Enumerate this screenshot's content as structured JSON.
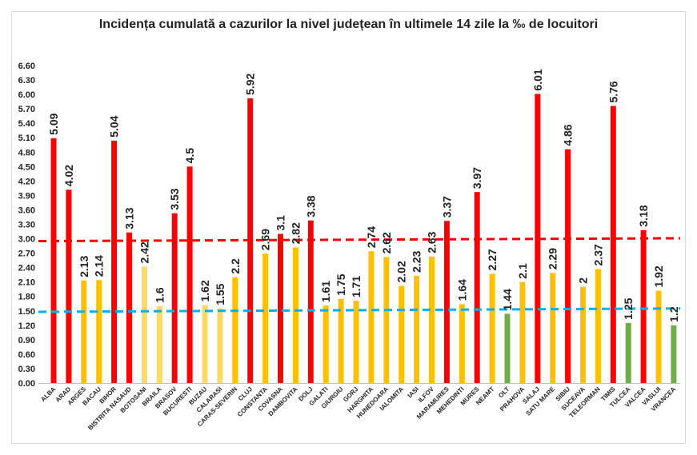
{
  "chart_data": {
    "type": "bar",
    "title": "Incidența cumulată a cazurilor la nivel județean în ultimele 14 zile la ‰ de locuitori",
    "xlabel": "",
    "ylabel": "",
    "ylim": [
      0,
      6.6
    ],
    "yticks": [
      "0.00",
      "0.30",
      "0.60",
      "0.90",
      "1.20",
      "1.50",
      "1.80",
      "2.10",
      "2.40",
      "2.70",
      "3.00",
      "3.30",
      "3.60",
      "3.90",
      "4.20",
      "4.50",
      "4.80",
      "5.10",
      "5.40",
      "5.70",
      "6.00",
      "6.30",
      "6.60"
    ],
    "grid": false,
    "legend": "none",
    "categories": [
      "ALBA",
      "ARAD",
      "ARGES",
      "BACAU",
      "BIHOR",
      "BISTRITA NASAUD",
      "BOTOSANI",
      "BRAILA",
      "BRASOV",
      "BUCURESTI",
      "BUZAU",
      "CALARASI",
      "CARAS-SEVERIN",
      "CLUJ",
      "CONSTANTA",
      "COVASNA",
      "DAMBOVITA",
      "DOLJ",
      "GALATI",
      "GIURGIU",
      "GORJ",
      "HARGHITA",
      "HUNEDOARA",
      "IALOMITA",
      "IASI",
      "ILFOV",
      "MARAMURES",
      "MEHEDINTI",
      "MURES",
      "NEAMT",
      "OLT",
      "PRAHOVA",
      "SALAJ",
      "SATU MARE",
      "SIBIU",
      "SUCEAVA",
      "TELEORMAN",
      "TIMIS",
      "TULCEA",
      "VALCEA",
      "VASLUI",
      "VRANCEA"
    ],
    "values": [
      5.09,
      4.02,
      2.13,
      2.14,
      5.04,
      3.13,
      2.42,
      1.6,
      3.53,
      4.5,
      1.62,
      1.55,
      2.2,
      5.92,
      2.69,
      3.1,
      2.82,
      3.38,
      1.61,
      1.75,
      1.71,
      2.74,
      2.62,
      2.02,
      2.23,
      2.63,
      3.37,
      1.64,
      3.97,
      2.27,
      1.44,
      2.1,
      6.01,
      2.29,
      4.86,
      2,
      2.37,
      5.76,
      1.25,
      3.18,
      1.92,
      1.2
    ],
    "value_labels": [
      "5.09",
      "4.02",
      "2.13",
      "2.14",
      "5.04",
      "3.13",
      "2.42",
      "1.6",
      "3.53",
      "4.5",
      "1.62",
      "1.55",
      "2.2",
      "5.92",
      "2.69",
      "3.1",
      "2.82",
      "3.38",
      "1.61",
      "1.75",
      "1.71",
      "2.74",
      "2.62",
      "2.02",
      "2.23",
      "2.63",
      "3.37",
      "1.64",
      "3.97",
      "2.27",
      "1.44",
      "2.1",
      "6.01",
      "2.29",
      "4.86",
      "2",
      "2.37",
      "5.76",
      "1.25",
      "3.18",
      "1.92",
      "1.2"
    ],
    "bar_colors": [
      "#ff0000",
      "#ff0000",
      "#ffc000",
      "#ffc000",
      "#ff0000",
      "#ff0000",
      "#ffd966",
      "#ffd966",
      "#ff0000",
      "#ff0000",
      "#ffd966",
      "#ffd966",
      "#ffc000",
      "#ff0000",
      "#ffc000",
      "#ff0000",
      "#ffc000",
      "#ff0000",
      "#ffc000",
      "#ffc000",
      "#ffc000",
      "#ffc000",
      "#ffc000",
      "#ffc000",
      "#ffc000",
      "#ffc000",
      "#ff0000",
      "#ffc000",
      "#ff0000",
      "#ffc000",
      "#70ad47",
      "#ffc000",
      "#ff0000",
      "#ffc000",
      "#ff0000",
      "#ffc000",
      "#ffc000",
      "#ff0000",
      "#70ad47",
      "#ff0000",
      "#ffc000",
      "#70ad47"
    ],
    "reference_lines": [
      {
        "color": "#ff0000",
        "y_start": 2.95,
        "y_end": 3.01
      },
      {
        "color": "#00b0f0",
        "y_start": 1.48,
        "y_end": 1.55
      }
    ]
  }
}
